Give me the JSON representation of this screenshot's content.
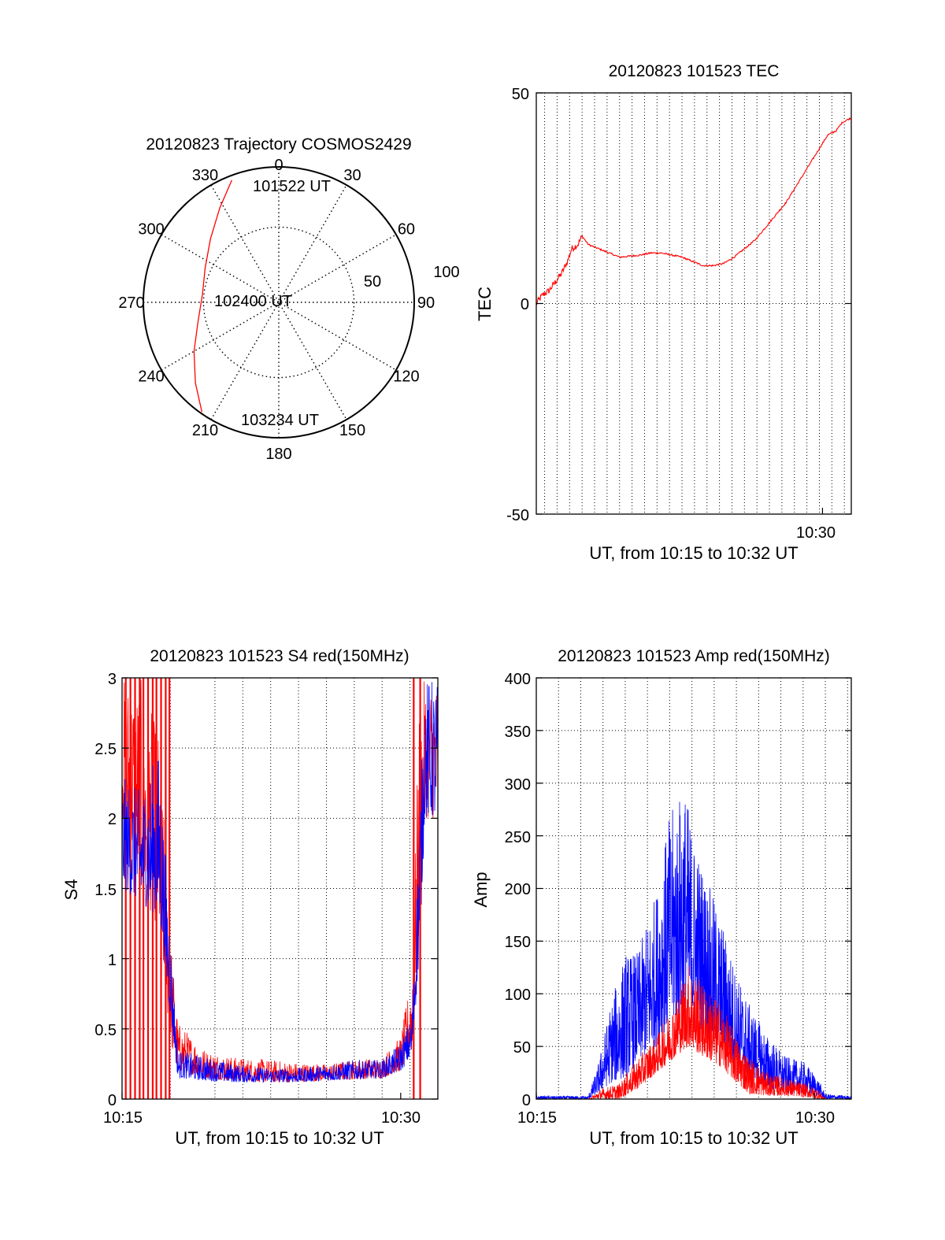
{
  "colors": {
    "red": "#ff0000",
    "blue": "#0000ff",
    "axis": "#000000",
    "grid": "#000000"
  },
  "chart_data": [
    {
      "id": "polar",
      "type": "scatter",
      "subtype": "polar-trajectory",
      "title": "20120823 Trajectory COSMOS2429",
      "angle_labels": [
        "0",
        "30",
        "60",
        "90",
        "120",
        "150",
        "180",
        "210",
        "240",
        "270",
        "300",
        "330"
      ],
      "radial_labels": [
        "50",
        "100"
      ],
      "annotations": [
        {
          "text": "101522 UT",
          "az": 338,
          "zen": 88
        },
        {
          "text": "102400 UT",
          "az": 262,
          "zen": 45
        },
        {
          "text": "103234 UT",
          "az": 203,
          "zen": 90
        }
      ],
      "series": [
        {
          "color": "red",
          "points_az_zen": [
            [
              339,
              87
            ],
            [
              328,
              74
            ],
            [
              313,
              62
            ],
            [
              295,
              54
            ],
            [
              276,
              51
            ],
            [
              257,
              55
            ],
            [
              240,
              65
            ],
            [
              226,
              77
            ],
            [
              215,
              89
            ]
          ]
        }
      ]
    },
    {
      "id": "tec",
      "type": "line",
      "title": "20120823 101523 TEC",
      "xlabel": "UT, from 10:15 to 10:32 UT",
      "ylabel": "TEC",
      "x_range": [
        "10:16:15",
        "10:31:23"
      ],
      "ylim": [
        -50,
        50
      ],
      "y_ticks": [
        "50",
        "0",
        "-50"
      ],
      "x_ticks": [
        "10:30"
      ],
      "x_grid_minutes": [
        16.65,
        17.25,
        17.85,
        18.45,
        19.05,
        19.65,
        20.25,
        20.85,
        21.45,
        22.05,
        22.65,
        23.25,
        23.85,
        24.45,
        25.05,
        25.65,
        26.25,
        26.85,
        27.45,
        28.05,
        28.65,
        29.25,
        29.85,
        30.45,
        31.05
      ],
      "grid": true,
      "series": [
        {
          "color": "red",
          "noise": 0.8,
          "points": [
            [
              0,
              0
            ],
            [
              0.3,
              2
            ],
            [
              0.6,
              3
            ],
            [
              0.9,
              5
            ],
            [
              1.2,
              7
            ],
            [
              1.5,
              10
            ],
            [
              1.7,
              13
            ],
            [
              2.0,
              14
            ],
            [
              2.2,
              16
            ],
            [
              2.5,
              14
            ],
            [
              3.0,
              13
            ],
            [
              3.5,
              12
            ],
            [
              4.0,
              11
            ],
            [
              5.0,
              11.5
            ],
            [
              5.5,
              12
            ],
            [
              6.0,
              12
            ],
            [
              6.5,
              11.5
            ],
            [
              7.0,
              11
            ],
            [
              7.5,
              10
            ],
            [
              8.0,
              9
            ],
            [
              8.5,
              9
            ],
            [
              9.0,
              9.5
            ],
            [
              9.5,
              11
            ],
            [
              10.0,
              13
            ],
            [
              10.5,
              15
            ],
            [
              11.0,
              18
            ],
            [
              11.5,
              21
            ],
            [
              12.0,
              24
            ],
            [
              12.5,
              28
            ],
            [
              13.0,
              32
            ],
            [
              13.5,
              36
            ],
            [
              14.0,
              40
            ],
            [
              14.4,
              41
            ],
            [
              14.7,
              43
            ],
            [
              15.1,
              44
            ]
          ]
        }
      ]
    },
    {
      "id": "s4",
      "type": "line",
      "title": "20120823 101523 S4 red(150MHz)",
      "xlabel": "UT, from 10:15 to 10:32 UT",
      "ylabel": "S4",
      "x_range": [
        "10:15:00",
        "10:32:00"
      ],
      "ylim": [
        0,
        3
      ],
      "y_ticks": [
        "0",
        "0.5",
        "1",
        "1.5",
        "2",
        "2.5",
        "3"
      ],
      "x_ticks": [
        "10:15",
        "10:30"
      ],
      "x_grid_minutes": [
        2.6,
        5.0,
        6.5,
        8.0,
        9.5,
        11.0,
        12.5,
        14.0,
        15.5,
        17.0
      ],
      "grid": true,
      "series": [
        {
          "color": "red",
          "name": "",
          "envelope": [
            [
              0,
              2.0,
              3.0
            ],
            [
              1.0,
              1.5,
              3.0
            ],
            [
              2.0,
              1.2,
              2.6
            ],
            [
              2.6,
              0.4,
              1.2
            ],
            [
              3.0,
              0.2,
              0.55
            ],
            [
              4.5,
              0.15,
              0.35
            ],
            [
              6.0,
              0.13,
              0.3
            ],
            [
              8.0,
              0.12,
              0.28
            ],
            [
              9.5,
              0.12,
              0.26
            ],
            [
              11.0,
              0.13,
              0.25
            ],
            [
              12.5,
              0.14,
              0.28
            ],
            [
              14.0,
              0.15,
              0.3
            ],
            [
              15.0,
              0.2,
              0.45
            ],
            [
              15.6,
              0.35,
              0.9
            ],
            [
              16.0,
              1.2,
              2.8
            ],
            [
              16.3,
              2.0,
              3.0
            ],
            [
              17.0,
              2.0,
              3.0
            ]
          ],
          "spikes_minutes": [
            0.2,
            0.45,
            0.7,
            0.95,
            1.15,
            1.4,
            1.65,
            1.85,
            2.1,
            2.35,
            2.55,
            15.7,
            16.05
          ]
        },
        {
          "color": "blue",
          "name": "",
          "envelope": [
            [
              0,
              1.5,
              2.3
            ],
            [
              1.0,
              1.4,
              2.2
            ],
            [
              2.0,
              1.3,
              2.5
            ],
            [
              2.6,
              0.6,
              1.2
            ],
            [
              3.0,
              0.15,
              0.35
            ],
            [
              4.5,
              0.13,
              0.3
            ],
            [
              6.0,
              0.12,
              0.25
            ],
            [
              8.0,
              0.12,
              0.22
            ],
            [
              9.5,
              0.12,
              0.22
            ],
            [
              11.0,
              0.13,
              0.25
            ],
            [
              12.5,
              0.14,
              0.28
            ],
            [
              14.0,
              0.15,
              0.28
            ],
            [
              15.0,
              0.2,
              0.4
            ],
            [
              15.6,
              0.3,
              0.6
            ],
            [
              16.0,
              1.0,
              2.0
            ],
            [
              16.3,
              2.0,
              3.0
            ],
            [
              17.0,
              2.0,
              3.0
            ]
          ]
        }
      ]
    },
    {
      "id": "amp",
      "type": "line",
      "title": "20120823 101523 Amp red(150MHz)",
      "xlabel": "UT, from 10:15 to 10:32 UT",
      "ylabel": "Amp",
      "x_range": [
        "10:15:00",
        "10:32:00"
      ],
      "ylim": [
        0,
        400
      ],
      "y_ticks": [
        "0",
        "50",
        "100",
        "150",
        "200",
        "250",
        "300",
        "350",
        "400"
      ],
      "x_ticks": [
        "10:15",
        "10:30"
      ],
      "x_grid_minutes": [
        1.2,
        2.4,
        3.6,
        4.8,
        6.0,
        7.2,
        8.4,
        9.6,
        10.8,
        12.0,
        13.2,
        14.4,
        15.6,
        16.8
      ],
      "grid": true,
      "series": [
        {
          "color": "blue",
          "name": "",
          "envelope": [
            [
              0,
              0,
              3
            ],
            [
              2.8,
              0,
              3
            ],
            [
              3.3,
              5,
              30
            ],
            [
              4.0,
              15,
              90
            ],
            [
              4.8,
              20,
              140
            ],
            [
              5.5,
              35,
              140
            ],
            [
              6.5,
              50,
              200
            ],
            [
              7.2,
              70,
              270
            ],
            [
              8.0,
              80,
              300
            ],
            [
              8.5,
              70,
              250
            ],
            [
              9.2,
              60,
              210
            ],
            [
              10.0,
              45,
              170
            ],
            [
              10.8,
              30,
              120
            ],
            [
              11.5,
              20,
              90
            ],
            [
              12.5,
              10,
              60
            ],
            [
              13.5,
              5,
              40
            ],
            [
              14.5,
              5,
              35
            ],
            [
              15.2,
              3,
              20
            ],
            [
              15.6,
              0,
              5
            ],
            [
              17.0,
              0,
              3
            ]
          ]
        },
        {
          "color": "red",
          "name": "",
          "envelope": [
            [
              0,
              0,
              0
            ],
            [
              2.8,
              0,
              0
            ],
            [
              3.5,
              0,
              10
            ],
            [
              4.5,
              0,
              15
            ],
            [
              5.5,
              10,
              40
            ],
            [
              6.5,
              25,
              60
            ],
            [
              7.5,
              40,
              95
            ],
            [
              8.2,
              50,
              130
            ],
            [
              9.0,
              40,
              110
            ],
            [
              10.0,
              30,
              90
            ],
            [
              10.8,
              15,
              60
            ],
            [
              11.5,
              5,
              40
            ],
            [
              12.5,
              3,
              25
            ],
            [
              13.5,
              3,
              20
            ],
            [
              14.5,
              2,
              15
            ],
            [
              15.2,
              0,
              10
            ],
            [
              15.6,
              0,
              0
            ],
            [
              17.0,
              0,
              0
            ]
          ]
        }
      ]
    }
  ]
}
